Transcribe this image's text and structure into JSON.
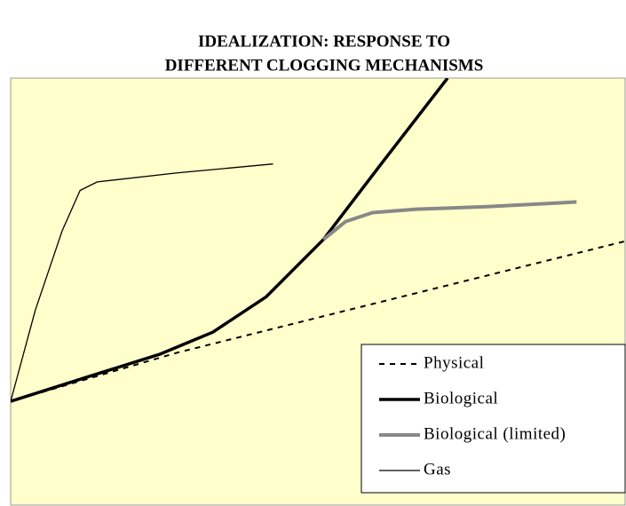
{
  "chart_data": {
    "type": "line",
    "title": [
      "IDEALIZATION: RESPONSE TO",
      "DIFFERENT CLOGGING MECHANISMS"
    ],
    "xlim": [
      0,
      100
    ],
    "ylim": [
      0,
      100
    ],
    "legend": "lower right",
    "background": "#ffffcc",
    "series": [
      {
        "name": "Physical",
        "color": "#000000",
        "style": "dashed",
        "width": 2,
        "x": [
          0,
          27.1,
          60,
          100
        ],
        "values": [
          24.3,
          35.7,
          47.5,
          61.8
        ]
      },
      {
        "name": "Biological",
        "color": "#000000",
        "style": "solid",
        "width": 3.5,
        "x": [
          0,
          12.7,
          24.2,
          32.9,
          41.6,
          50.9,
          60.3,
          71.1
        ],
        "values": [
          24.3,
          30.1,
          35.3,
          40.5,
          48.8,
          62.2,
          79.9,
          100
        ]
      },
      {
        "name": "Biological (limited)",
        "color": "#888888",
        "style": "solid",
        "width": 4,
        "x": [
          50.9,
          54.5,
          58.9,
          66.1,
          77.6,
          92.1
        ],
        "values": [
          62.2,
          66.4,
          68.5,
          69.3,
          69.9,
          71.0
        ]
      },
      {
        "name": "Gas",
        "color": "#000000",
        "style": "solid",
        "width": 1.3,
        "x": [
          0,
          4.0,
          8.4,
          11.3,
          14.1,
          27.1,
          42.7
        ],
        "values": [
          24.3,
          45.6,
          64.3,
          73.7,
          75.7,
          77.8,
          79.9
        ]
      }
    ]
  }
}
